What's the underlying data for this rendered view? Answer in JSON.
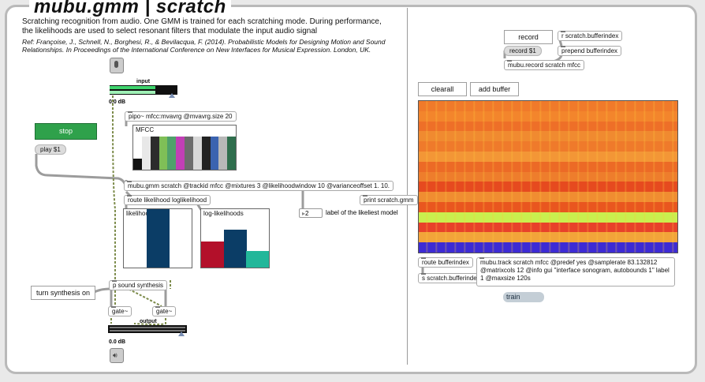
{
  "header": {
    "title": "mubu.gmm | scratch",
    "description": "Scratching recognition from audio. One GMM is trained for each scratching mode. During performance, the likelihoods are used to select resonant filters that modulate the input audio signal",
    "reference": "Ref: Françoise, J., Schnell, N., Borghesi, R., & Bevilacqua, F. (2014). Probabilistic Models for Designing Motion and Sound Relationships. In Proceedings of the International Conference on New Interfaces for Musical Expression. London, UK."
  },
  "left": {
    "input_label": "input",
    "input_db": "0.0 dB",
    "stop_label": "stop",
    "play_msg": "play $1",
    "pipo_obj": "pipo~ mfcc:mvavrg @mvavrg.size 20",
    "mfcc_label": "MFCC",
    "gmm_obj": "mubu.gmm scratch @trackid mfcc @mixtures 3 @likelihoodwindow 10 @varianceoffset 1. 10.",
    "print_obj": "print scratch.gmm",
    "route_obj": "route likelihood loglikelihood",
    "likeliest_number": "2",
    "likeliest_label": "label of the likeliest model",
    "likelihoods_label": "likelihoods",
    "loglikelihoods_label": "log-likelihoods",
    "psynth_obj": "p sound synthesis",
    "turn_synth_label": "turn synthesis on",
    "gate1_obj": "gate~",
    "gate2_obj": "gate~",
    "output_label": "output",
    "output_db": "0.0 dB"
  },
  "right": {
    "record_button": "record",
    "r_bufferindex": "r scratch.bufferindex",
    "record_msg": "record $1",
    "prepend_obj": "prepend bufferindex",
    "mubu_record_obj": "mubu.record scratch mfcc",
    "clearall_button": "clearall",
    "addbuffer_button": "add buffer",
    "route_bufferindex": "route bufferindex",
    "s_bufferindex": "s scratch.bufferindex",
    "mubu_track_obj": "mubu.track scratch mfcc @predef yes @samplerate 83.132812 @matrixcols 12 @info gui \"interface sonogram, autobounds 1\" label 1 @maxsize 120s",
    "train_msg": "train"
  },
  "charts": {
    "mfcc_bars": {
      "values": [
        0.25,
        0.75,
        0.75,
        0.75,
        0.75,
        0.75,
        0.75,
        0.75,
        0.75,
        0.75,
        0.75,
        0.75
      ],
      "colors": [
        "#111111",
        "#e8e8e8",
        "#2c2c2c",
        "#7fbf57",
        "#4fa16b",
        "#c23fb6",
        "#6c6c6c",
        "#d8d8d8",
        "#222222",
        "#3b63b0",
        "#b8b8b8",
        "#2f6e4d"
      ]
    },
    "likelihood_bars": {
      "values": [
        0.0,
        1.0,
        0.0
      ],
      "colors": [
        "#b3102a",
        "#0b3d66",
        "#22b79a"
      ]
    },
    "loglikelihood_bars": {
      "values": [
        0.45,
        0.65,
        0.28
      ],
      "colors": [
        "#b3102a",
        "#0b3d66",
        "#22b79a"
      ]
    }
  },
  "colors": {
    "accent_green": "#2fa14b",
    "meter_green": "#38c460",
    "cable_dark": "#9a9a9a",
    "cable_signal": "#5c7d2a"
  }
}
